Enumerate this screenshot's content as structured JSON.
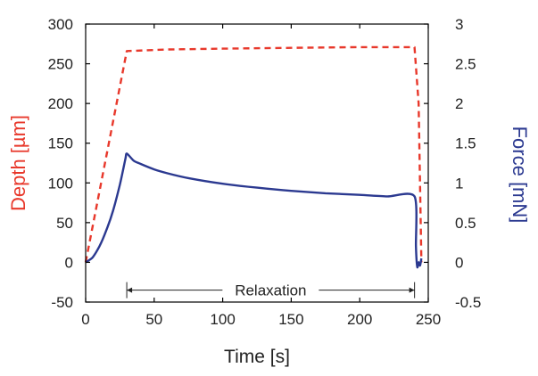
{
  "chart_data": {
    "type": "line",
    "xlabel": "Time [s]",
    "ylabel_left": "Depth [µm]",
    "ylabel_right": "Force [mN]",
    "xlim": [
      0,
      250
    ],
    "ylim_left": [
      -50,
      300
    ],
    "ylim_right": [
      -0.5,
      3
    ],
    "x_ticks": [
      0,
      50,
      100,
      150,
      200,
      250
    ],
    "y_ticks_left": [
      -50,
      0,
      50,
      100,
      150,
      200,
      250,
      300
    ],
    "y_ticks_right": [
      -0.5,
      0,
      0.5,
      1,
      1.5,
      2,
      2.5,
      3
    ],
    "y_tick_labels_right": [
      "-0.5",
      "0",
      "0.5",
      "1",
      "1.5",
      "2",
      "2.5",
      "3"
    ],
    "grid": false,
    "series": [
      {
        "axis": "left",
        "style": "dashed",
        "color": "#e8382b",
        "x": [
          0,
          30,
          60,
          100,
          150,
          200,
          240,
          243,
          245
        ],
        "y": [
          0,
          266,
          268,
          269,
          270,
          271,
          271,
          200,
          0
        ]
      },
      {
        "axis": "right",
        "style": "solid",
        "color": "#2b3990",
        "x": [
          0,
          5,
          10,
          15,
          20,
          25,
          29,
          30,
          35,
          40,
          50,
          60,
          75,
          100,
          125,
          150,
          175,
          200,
          220,
          240,
          241,
          242,
          243,
          244,
          245
        ],
        "y": [
          0,
          0.06,
          0.2,
          0.4,
          0.65,
          0.98,
          1.3,
          1.37,
          1.28,
          1.24,
          1.17,
          1.12,
          1.06,
          0.99,
          0.94,
          0.9,
          0.87,
          0.85,
          0.83,
          0.83,
          0.2,
          -0.06,
          0.0,
          -0.04,
          0.05
        ]
      }
    ],
    "annotations": [
      {
        "text": "Relaxation",
        "x_start": 30,
        "x_end": 240,
        "y_left": -35
      }
    ]
  }
}
